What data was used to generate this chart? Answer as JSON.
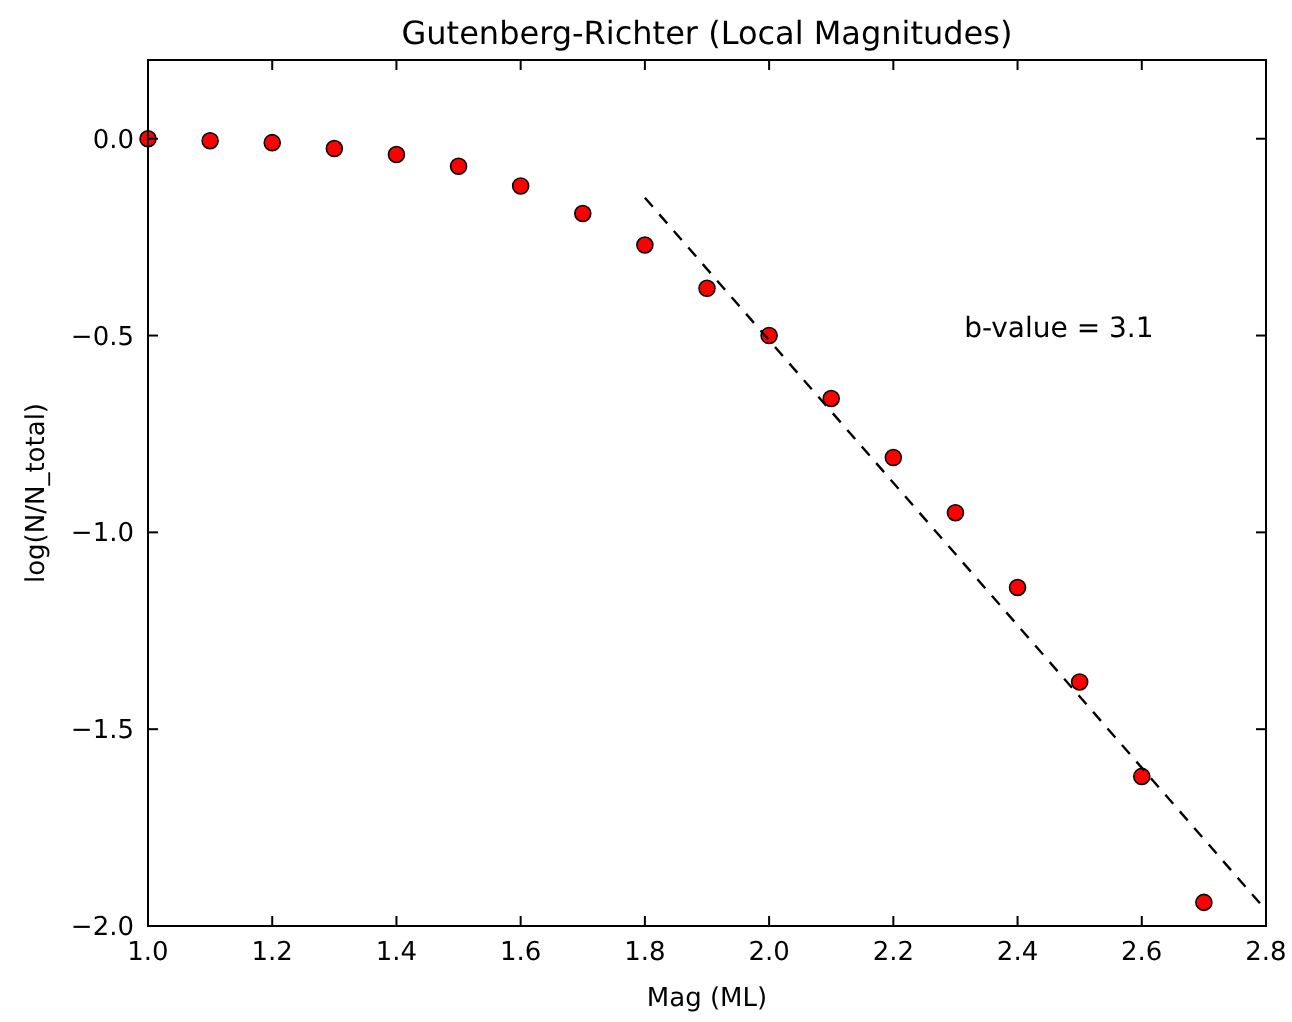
{
  "chart_data": {
    "type": "scatter",
    "title": "Gutenberg-Richter (Local Magnitudes)",
    "xlabel": "Mag (ML)",
    "ylabel": "log(N/N_total)",
    "series": [
      {
        "color": "#ff0000",
        "marker": "circle",
        "x": [
          1.0,
          1.1,
          1.2,
          1.3,
          1.4,
          1.5,
          1.6,
          1.7,
          1.8,
          1.9,
          2.0,
          2.1,
          2.2,
          2.3,
          2.4,
          2.5,
          2.6,
          2.7
        ],
        "values": [
          0,
          -0.005,
          -0.01,
          -0.025,
          -0.04,
          -0.07,
          -0.12,
          -0.19,
          -0.27,
          -0.38,
          -0.5,
          -0.66,
          -0.81,
          -0.95,
          -1.14,
          -1.38,
          -1.62,
          -1.94
        ]
      },
      {
        "type": "line",
        "color": "#000000",
        "line_style": "dashed",
        "marker": "none",
        "x": [
          1.8,
          2.8
        ],
        "values": [
          -0.15,
          -1.96
        ]
      }
    ],
    "annotations": [
      "b-value = 3.1"
    ],
    "xlim": [
      1.0,
      2.8
    ],
    "ylim": [
      -2.0,
      0.2
    ],
    "xticks": [
      {
        "value": 1,
        "label": "1.0"
      },
      1.2,
      1.4,
      1.6,
      1.8,
      {
        "value": 2,
        "label": "2.0"
      },
      2.2,
      2.4,
      2.6,
      2.8
    ],
    "yticks": [
      {
        "value": 0,
        "label": "0.0"
      },
      {
        "value": -0.5,
        "label": "−0.5"
      },
      {
        "value": -1,
        "label": "−1.0"
      },
      {
        "value": -1.5,
        "label": "−1.5"
      },
      {
        "value": -2,
        "label": "−2.0"
      }
    ],
    "grid": false
  }
}
